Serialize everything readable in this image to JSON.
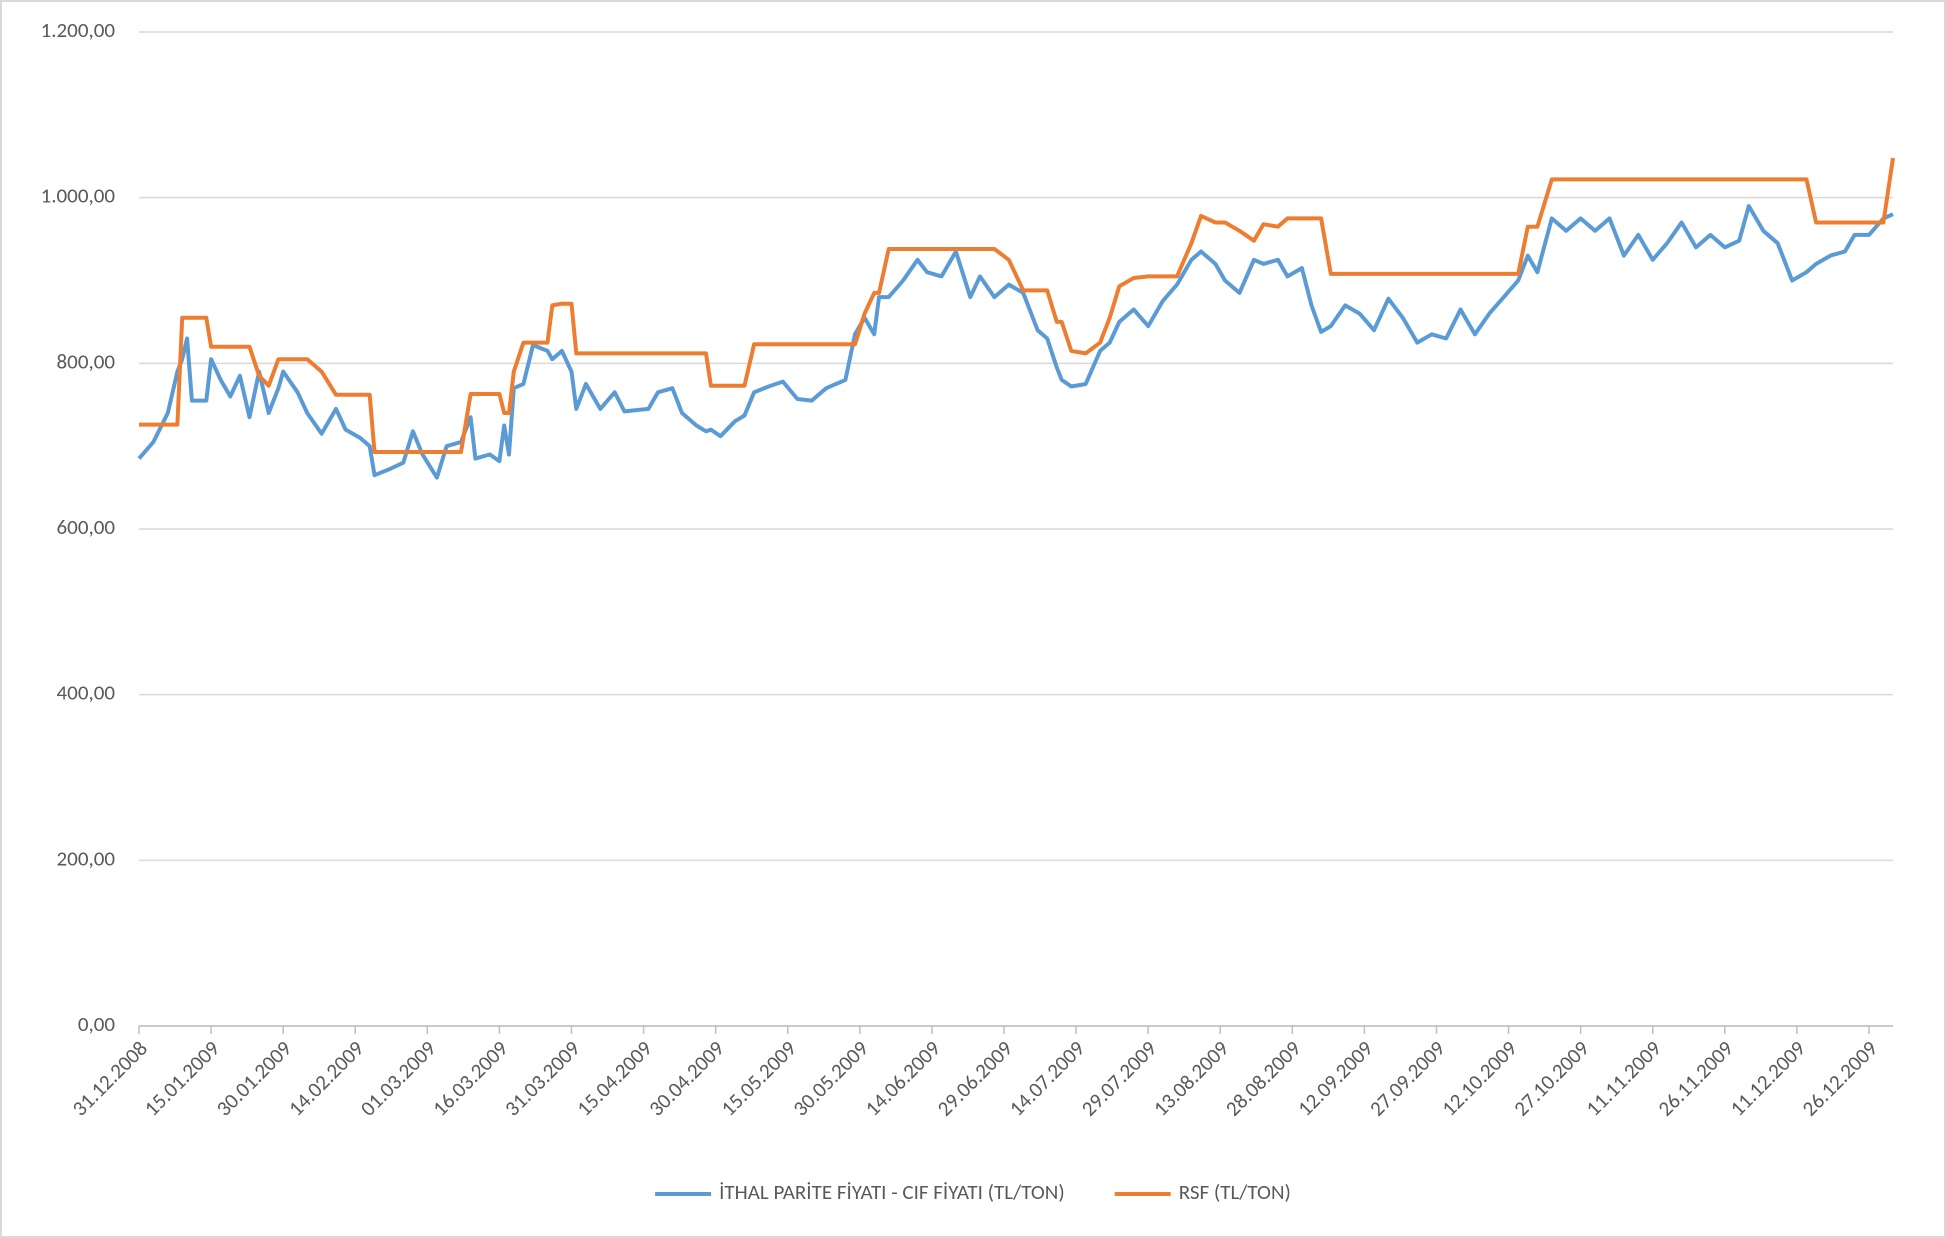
{
  "chart_data": {
    "type": "line",
    "x": [
      "31.12.2008",
      "03.01.2009",
      "06.01.2009",
      "08.01.2009",
      "09.01.2009",
      "10.01.2009",
      "11.01.2009",
      "14.01.2009",
      "15.01.2009",
      "17.01.2009",
      "19.01.2009",
      "21.01.2009",
      "23.01.2009",
      "25.01.2009",
      "27.01.2009",
      "29.01.2009",
      "30.01.2009",
      "02.02.2009",
      "04.02.2009",
      "07.02.2009",
      "10.02.2009",
      "12.02.2009",
      "15.02.2009",
      "17.02.2009",
      "18.02.2009",
      "21.02.2009",
      "24.02.2009",
      "26.02.2009",
      "28.02.2009",
      "03.03.2009",
      "05.03.2009",
      "08.03.2009",
      "10.03.2009",
      "11.03.2009",
      "14.03.2009",
      "16.03.2009",
      "17.03.2009",
      "18.03.2009",
      "19.03.2009",
      "21.03.2009",
      "23.03.2009",
      "26.03.2009",
      "27.03.2009",
      "29.03.2009",
      "31.03.2009",
      "01.04.2009",
      "03.04.2009",
      "06.04.2009",
      "09.04.2009",
      "11.04.2009",
      "16.04.2009",
      "18.04.2009",
      "21.04.2009",
      "23.04.2009",
      "26.04.2009",
      "28.04.2009",
      "29.04.2009",
      "01.05.2009",
      "04.05.2009",
      "06.05.2009",
      "08.05.2009",
      "11.05.2009",
      "14.05.2009",
      "17.05.2009",
      "20.05.2009",
      "23.05.2009",
      "27.05.2009",
      "29.05.2009",
      "31.05.2009",
      "02.06.2009",
      "03.06.2009",
      "05.06.2009",
      "08.06.2009",
      "11.06.2009",
      "13.06.2009",
      "16.06.2009",
      "19.06.2009",
      "22.06.2009",
      "24.06.2009",
      "27.06.2009",
      "30.06.2009",
      "03.07.2009",
      "06.07.2009",
      "08.07.2009",
      "10.07.2009",
      "11.07.2009",
      "13.07.2009",
      "16.07.2009",
      "19.07.2009",
      "21.07.2009",
      "23.07.2009",
      "26.07.2009",
      "29.07.2009",
      "01.08.2009",
      "04.08.2009",
      "07.08.2009",
      "09.08.2009",
      "12.08.2009",
      "14.08.2009",
      "17.08.2009",
      "20.08.2009",
      "22.08.2009",
      "25.08.2009",
      "27.08.2009",
      "30.08.2009",
      "01.09.2009",
      "03.09.2009",
      "05.09.2009",
      "08.09.2009",
      "11.09.2009",
      "14.09.2009",
      "17.09.2009",
      "20.09.2009",
      "23.09.2009",
      "26.09.2009",
      "29.09.2009",
      "02.10.2009",
      "05.10.2009",
      "08.10.2009",
      "11.10.2009",
      "14.10.2009",
      "16.10.2009",
      "18.10.2009",
      "21.10.2009",
      "24.10.2009",
      "27.10.2009",
      "30.10.2009",
      "02.11.2009",
      "05.11.2009",
      "08.11.2009",
      "11.11.2009",
      "14.11.2009",
      "17.11.2009",
      "20.11.2009",
      "23.11.2009",
      "26.11.2009",
      "29.11.2009",
      "01.12.2009",
      "04.12.2009",
      "07.12.2009",
      "10.12.2009",
      "13.12.2009",
      "15.12.2009",
      "18.12.2009",
      "21.12.2009",
      "23.12.2009",
      "26.12.2009",
      "29.12.2009",
      "31.12.2009"
    ],
    "series": [
      {
        "name": "İTHAL PARİTE FİYATI - CIF FİYATI (TL/TON)",
        "color": "#5b9bd5",
        "values": [
          685,
          705,
          740,
          790,
          805,
          830,
          755,
          755,
          805,
          780,
          760,
          785,
          735,
          790,
          740,
          770,
          790,
          765,
          740,
          715,
          745,
          720,
          710,
          700,
          665,
          672,
          680,
          718,
          690,
          662,
          700,
          705,
          735,
          685,
          690,
          682,
          725,
          690,
          770,
          775,
          822,
          815,
          805,
          815,
          790,
          745,
          775,
          745,
          765,
          742,
          745,
          765,
          770,
          740,
          725,
          718,
          720,
          712,
          730,
          737,
          765,
          772,
          778,
          757,
          755,
          770,
          780,
          835,
          855,
          835,
          880,
          880,
          900,
          925,
          910,
          905,
          935,
          880,
          905,
          880,
          895,
          885,
          840,
          830,
          795,
          780,
          772,
          775,
          815,
          825,
          850,
          865,
          845,
          875,
          895,
          925,
          935,
          920,
          900,
          885,
          925,
          920,
          925,
          905,
          915,
          870,
          838,
          845,
          870,
          860,
          840,
          878,
          855,
          825,
          835,
          830,
          865,
          835,
          860,
          880,
          900,
          930,
          910,
          975,
          960,
          975,
          960,
          975,
          930,
          955,
          925,
          945,
          970,
          940,
          955,
          940,
          948,
          990,
          960,
          945,
          900,
          910,
          920,
          930,
          935,
          955,
          955,
          975,
          980
        ]
      },
      {
        "name": "RSF (TL/TON)",
        "color": "#ed7d31",
        "values": [
          726,
          726,
          726,
          726,
          855,
          855,
          855,
          855,
          820,
          820,
          820,
          820,
          820,
          785,
          773,
          805,
          805,
          805,
          805,
          790,
          762,
          762,
          762,
          762,
          693,
          693,
          693,
          693,
          693,
          693,
          693,
          693,
          763,
          763,
          763,
          763,
          740,
          740,
          790,
          825,
          825,
          825,
          870,
          872,
          872,
          812,
          812,
          812,
          812,
          812,
          812,
          812,
          812,
          812,
          812,
          812,
          773,
          773,
          773,
          773,
          823,
          823,
          823,
          823,
          823,
          823,
          823,
          823,
          860,
          885,
          885,
          938,
          938,
          938,
          938,
          938,
          938,
          938,
          938,
          938,
          925,
          888,
          888,
          888,
          850,
          850,
          815,
          812,
          825,
          855,
          893,
          903,
          905,
          905,
          905,
          945,
          978,
          970,
          970,
          960,
          948,
          968,
          965,
          975,
          975,
          975,
          975,
          908,
          908,
          908,
          908,
          908,
          908,
          908,
          908,
          908,
          908,
          908,
          908,
          908,
          908,
          965,
          965,
          1022,
          1022,
          1022,
          1022,
          1022,
          1022,
          1022,
          1022,
          1022,
          1022,
          1022,
          1022,
          1022,
          1022,
          1022,
          1022,
          1022,
          1022,
          1022,
          970,
          970,
          970,
          970,
          970,
          970,
          1048
        ]
      }
    ],
    "xlim": [
      "31.12.2008",
      "31.12.2009"
    ],
    "xticks": [
      "31.12.2008",
      "15.01.2009",
      "30.01.2009",
      "14.02.2009",
      "01.03.2009",
      "16.03.2009",
      "31.03.2009",
      "15.04.2009",
      "30.04.2009",
      "15.05.2009",
      "30.05.2009",
      "14.06.2009",
      "29.06.2009",
      "14.07.2009",
      "29.07.2009",
      "13.08.2009",
      "28.08.2009",
      "12.09.2009",
      "27.09.2009",
      "12.10.2009",
      "27.10.2009",
      "11.11.2009",
      "26.11.2009",
      "11.12.2009",
      "26.12.2009"
    ],
    "ylim": [
      0,
      1200
    ],
    "yticks": [
      {
        "value": 0,
        "label": "0,00"
      },
      {
        "value": 200,
        "label": "200,00"
      },
      {
        "value": 400,
        "label": "400,00"
      },
      {
        "value": 600,
        "label": "600,00"
      },
      {
        "value": 800,
        "label": "800,00"
      },
      {
        "value": 1000,
        "label": "1.000,00"
      },
      {
        "value": 1200,
        "label": "1.200,00"
      }
    ],
    "grid": true,
    "legend": "bottom"
  }
}
